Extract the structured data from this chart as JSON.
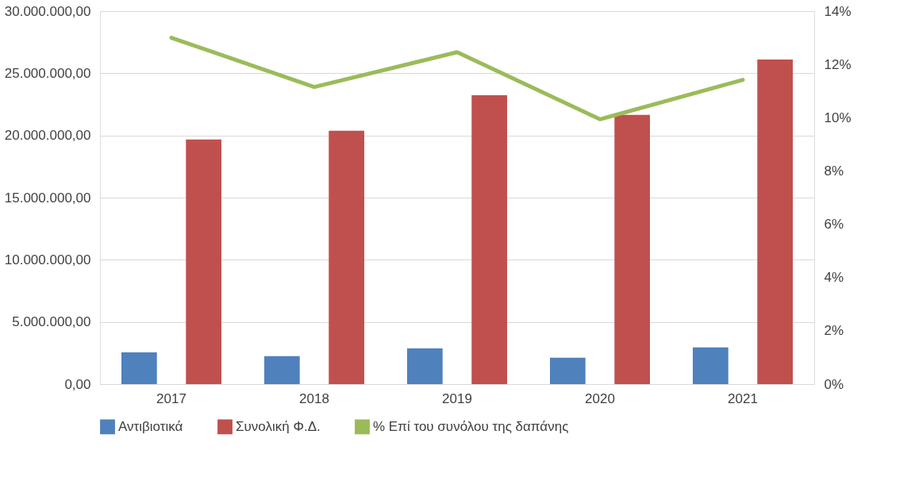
{
  "chart_data": {
    "type": "bar",
    "categories": [
      "2017",
      "2018",
      "2019",
      "2020",
      "2021"
    ],
    "series": [
      {
        "name": "Αντιβιοτικά",
        "color": "#4f81bd",
        "values": [
          2560000,
          2250000,
          2880000,
          2120000,
          2950000
        ]
      },
      {
        "name": "Συνολική Φ.Δ.",
        "color": "#c0504d",
        "values": [
          19680000,
          20380000,
          23240000,
          21650000,
          26100000
        ]
      },
      {
        "name": "% Επί του συνόλου της δαπάνης",
        "color": "#9bbb59",
        "type": "line",
        "axis": "y2",
        "values": [
          13.0,
          11.15,
          12.46,
          9.94,
          11.42
        ]
      }
    ],
    "ylim": [
      0,
      30000000
    ],
    "yticks": [
      {
        "value": 0,
        "label": "0,00"
      },
      {
        "value": 5000000,
        "label": "5.000.000,00"
      },
      {
        "value": 10000000,
        "label": "10.000.000,00"
      },
      {
        "value": 15000000,
        "label": "15.000.000,00"
      },
      {
        "value": 20000000,
        "label": "20.000.000,00"
      },
      {
        "value": 25000000,
        "label": "25.000.000,00"
      },
      {
        "value": 30000000,
        "label": "30.000.000,00"
      }
    ],
    "y2lim": [
      0,
      14
    ],
    "y2ticks": [
      {
        "value": 0,
        "label": "0%"
      },
      {
        "value": 2,
        "label": "2%"
      },
      {
        "value": 4,
        "label": "4%"
      },
      {
        "value": 6,
        "label": "6%"
      },
      {
        "value": 8,
        "label": "8%"
      },
      {
        "value": 10,
        "label": "10%"
      },
      {
        "value": 12,
        "label": "12%"
      },
      {
        "value": 14,
        "label": "14%"
      }
    ],
    "grid": "y",
    "legend": "bottom",
    "line_style": "solid",
    "marker": "none"
  }
}
